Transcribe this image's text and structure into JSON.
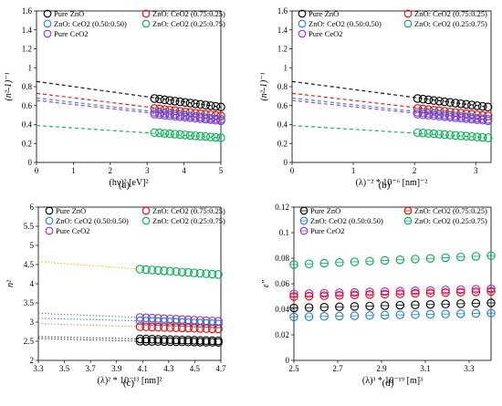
{
  "figure": {
    "panels": [
      "(a)",
      "(b)",
      "(c)",
      "(d)"
    ]
  },
  "legend_labels": [
    "Pure ZnO",
    "ZnO: CeO2 (0.75:0.25)",
    "ZnO: CeO2 (0.50:0.50)",
    "ZnO: CeO2 (0.25:0.75)",
    "Pure CeO2"
  ],
  "colors": {
    "Pure ZnO": "#000000",
    "ZnO: CeO2 (0.75:0.25)": "#ff0000",
    "ZnO: CeO2 (0.50:0.50)": "#1f7fd6",
    "ZnO: CeO2 (0.25:0.75)": "#00b050",
    "Pure CeO2": "#9b30d0",
    "trend_c_CeO2": "#7f7fd0",
    "trend_c_025": "#f0c000",
    "trend_c_050": "#4f8fe0",
    "trend_c_075": "#ff9050",
    "trend_c_ZnO": "#404040"
  },
  "chart_data": [
    {
      "panel": "(a)",
      "type": "scatter",
      "xlabel": "(hν)² [eV]²",
      "ylabel": "(n²-1)⁻¹",
      "xlim": [
        0,
        5
      ],
      "ylim": [
        0,
        1.6
      ],
      "xticks": [
        "0",
        "1",
        "2",
        "3",
        "4",
        "5"
      ],
      "yticks": [
        "0",
        "0.2",
        "0.4",
        "0.6",
        "0.8",
        "1",
        "1.2",
        "1.4",
        "1.6"
      ],
      "grid": false,
      "legend_position": "top",
      "x_range": [
        3.2,
        5.0
      ],
      "fit_line_style": "dashed, extrapolated to x = 0",
      "series": [
        {
          "name": "Pure ZnO",
          "y_start": 0.675,
          "y_end": 0.585,
          "intercept": 0.855
        },
        {
          "name": "ZnO: CeO2 (0.75:0.25)",
          "y_start": 0.57,
          "y_end": 0.49,
          "intercept": 0.73
        },
        {
          "name": "ZnO: CeO2 (0.50:0.50)",
          "y_start": 0.53,
          "y_end": 0.455,
          "intercept": 0.68
        },
        {
          "name": "Pure CeO2",
          "y_start": 0.51,
          "y_end": 0.44,
          "intercept": 0.655
        },
        {
          "name": "ZnO: CeO2 (0.25:0.75)",
          "y_start": 0.315,
          "y_end": 0.26,
          "intercept": 0.39
        }
      ]
    },
    {
      "panel": "(b)",
      "type": "scatter",
      "xlabel": "(λ)⁻² * 10⁻⁶ [nm]⁻²",
      "ylabel": "(n²-1)⁻¹",
      "xlim": [
        0,
        3.25
      ],
      "ylim": [
        0,
        1.6
      ],
      "xticks": [
        "0",
        "1",
        "2",
        "3"
      ],
      "yticks": [
        "0",
        "0.2",
        "0.4",
        "0.6",
        "0.8",
        "1",
        "1.2",
        "1.4",
        "1.6"
      ],
      "grid": false,
      "legend_position": "top",
      "x_range": [
        2.05,
        3.2
      ],
      "fit_line_style": "dashed, extrapolated to x = 0",
      "series": [
        {
          "name": "Pure ZnO",
          "y_start": 0.675,
          "y_end": 0.585,
          "intercept": 0.855
        },
        {
          "name": "ZnO: CeO2 (0.75:0.25)",
          "y_start": 0.57,
          "y_end": 0.49,
          "intercept": 0.73
        },
        {
          "name": "ZnO: CeO2 (0.50:0.50)",
          "y_start": 0.53,
          "y_end": 0.455,
          "intercept": 0.68
        },
        {
          "name": "Pure CeO2",
          "y_start": 0.51,
          "y_end": 0.44,
          "intercept": 0.655
        },
        {
          "name": "ZnO: CeO2 (0.25:0.75)",
          "y_start": 0.315,
          "y_end": 0.26,
          "intercept": 0.39
        }
      ]
    },
    {
      "panel": "(c)",
      "type": "scatter",
      "xlabel": "(λ)² * 10⁻¹³ [nm]²",
      "ylabel": "n²",
      "xlim": [
        3.3,
        4.7
      ],
      "ylim": [
        2,
        6
      ],
      "xticks": [
        "3.3",
        "3.5",
        "3.7",
        "3.9",
        "4.1",
        "4.3",
        "4.5",
        "4.7"
      ],
      "yticks": [
        "2",
        "2.5",
        "3",
        "3.5",
        "4",
        "4.5",
        "5",
        "5.5",
        "6"
      ],
      "grid": false,
      "legend_position": "top",
      "x_range": [
        4.08,
        4.68
      ],
      "fit_line_style": "dotted, extrapolated to x = 3.3",
      "series": [
        {
          "name": "ZnO: CeO2 (0.25:0.75)",
          "y_start": 4.38,
          "y_end": 4.24,
          "line_start": 4.58
        },
        {
          "name": "Pure CeO2",
          "y_start": 3.12,
          "y_end": 3.02,
          "line_start": 3.23
        },
        {
          "name": "ZnO: CeO2 (0.50:0.50)",
          "y_start": 3.03,
          "y_end": 2.95,
          "line_start": 3.1
        },
        {
          "name": "ZnO: CeO2 (0.75:0.25)",
          "y_start": 2.88,
          "y_end": 2.82,
          "line_start": 2.96
        },
        {
          "name": "Pure ZnO",
          "y_start": 2.56,
          "y_end": 2.51,
          "line_start": 2.62
        },
        {
          "name": "Pure ZnO",
          "y_start": 2.5,
          "y_end": 2.47,
          "line_start": 2.57
        }
      ]
    },
    {
      "panel": "(d)",
      "type": "scatter",
      "xlabel": "(λ)³ * 10⁻¹⁹ [m]³",
      "ylabel": "ε″",
      "xlim": [
        2.5,
        3.4
      ],
      "ylim": [
        0,
        0.12
      ],
      "xticks": [
        "2.5",
        "2.7",
        "2.9",
        "3.1",
        "3.3"
      ],
      "yticks": [
        "0",
        "0.02",
        "0.04",
        "0.06",
        "0.08",
        "0.1",
        "0.12"
      ],
      "grid": false,
      "legend_position": "top",
      "x_range": [
        2.5,
        3.4
      ],
      "series": [
        {
          "name": "ZnO: CeO2 (0.25:0.75)",
          "y_start": 0.075,
          "y_end": 0.082
        },
        {
          "name": "Pure CeO2",
          "y_start": 0.052,
          "y_end": 0.056
        },
        {
          "name": "ZnO: CeO2 (0.75:0.25)",
          "y_start": 0.05,
          "y_end": 0.054
        },
        {
          "name": "Pure ZnO",
          "y_start": 0.041,
          "y_end": 0.045
        },
        {
          "name": "ZnO: CeO2 (0.50:0.50)",
          "y_start": 0.034,
          "y_end": 0.037
        }
      ]
    }
  ]
}
